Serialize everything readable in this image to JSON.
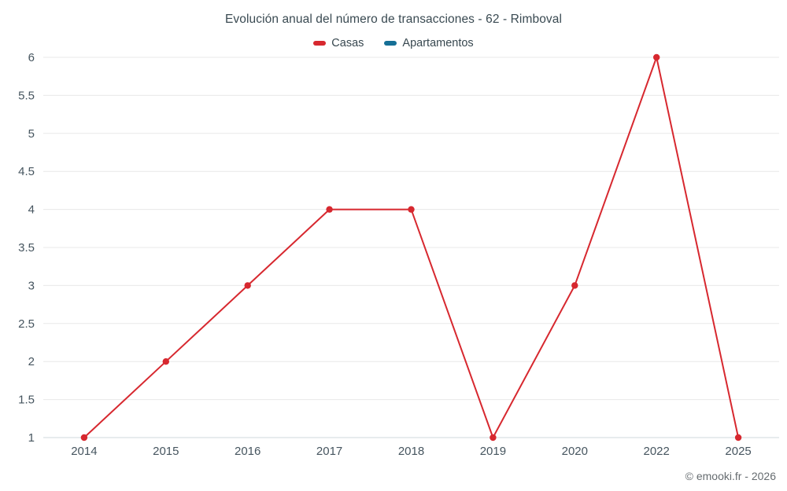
{
  "title": "Evolución anual del número de transacciones - 62 - Rimboval",
  "footer": "© emooki.fr - 2026",
  "legend": [
    {
      "label": "Casas",
      "color": "#d7282f"
    },
    {
      "label": "Apartamentos",
      "color": "#156f96"
    }
  ],
  "chart_data": {
    "type": "line",
    "title": "Evolución anual del número de transacciones - 62 - Rimboval",
    "categories": [
      "2014",
      "2015",
      "2016",
      "2017",
      "2018",
      "2019",
      "2020",
      "2022",
      "2025"
    ],
    "series": [
      {
        "name": "Casas",
        "color": "#d7282f",
        "values": [
          1,
          2,
          3,
          4,
          4,
          1,
          3,
          6,
          1
        ]
      },
      {
        "name": "Apartamentos",
        "color": "#156f96",
        "values": []
      }
    ],
    "xlabel": "",
    "ylabel": "",
    "ylim": [
      1,
      6
    ],
    "ytick_step": 0.5,
    "grid": true,
    "legend_position": "top",
    "grid_color": "#e8e8e8",
    "axis_line_color": "#cfd8dc",
    "marker_radius": 4.2,
    "line_width": 2
  }
}
